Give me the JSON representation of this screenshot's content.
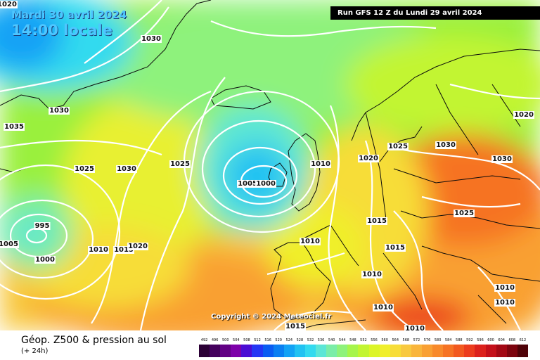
{
  "header": {
    "date": "Mardi 30 avril 2024",
    "time": "14:00 locale",
    "run": "Run GFS 12 Z du Lundi 29 avril 2024"
  },
  "copyright": "Copyright © 2024 Meteociel.fr",
  "footer": {
    "title": "Géop. Z500 & pression au sol",
    "subtitle": "(+ 24h)"
  },
  "legend": {
    "values": [
      "492",
      "496",
      "500",
      "504",
      "508",
      "512",
      "516",
      "520",
      "524",
      "528",
      "532",
      "536",
      "540",
      "544",
      "548",
      "552",
      "556",
      "560",
      "564",
      "568",
      "572",
      "576",
      "580",
      "584",
      "588",
      "592",
      "596",
      "600",
      "604",
      "608",
      "612"
    ],
    "colors": [
      "#2b0035",
      "#44005c",
      "#620084",
      "#7d00a9",
      "#4a0cd4",
      "#2436f4",
      "#0a5cf2",
      "#0a7ff2",
      "#12a2f5",
      "#21c2f2",
      "#33daef",
      "#5ce6d6",
      "#7aeda8",
      "#8ef27b",
      "#a6f54b",
      "#c2f531",
      "#dcf527",
      "#f0ef2c",
      "#f7dd38",
      "#f8c93f",
      "#f9b53b",
      "#f9a033",
      "#f88a2b",
      "#f67324",
      "#f2591f",
      "#ec3c1d",
      "#dc211c",
      "#c4101a",
      "#a30814",
      "#7d040e",
      "#4f0208"
    ]
  },
  "isobars": [
    {
      "text": "1020"
    },
    {
      "text": "1030"
    },
    {
      "text": "1030"
    },
    {
      "text": "1035"
    },
    {
      "text": "1025"
    },
    {
      "text": "1030"
    },
    {
      "text": "1025"
    },
    {
      "text": "1010"
    },
    {
      "text": "1005"
    },
    {
      "text": "1000"
    },
    {
      "text": "995"
    },
    {
      "text": "1005"
    },
    {
      "text": "1000"
    },
    {
      "text": "1010"
    },
    {
      "text": "1015"
    },
    {
      "text": "1020"
    },
    {
      "text": "1010"
    },
    {
      "text": "1015"
    },
    {
      "text": "1015"
    },
    {
      "text": "1010"
    },
    {
      "text": "1010"
    },
    {
      "text": "1015"
    },
    {
      "text": "1010"
    },
    {
      "text": "1020"
    },
    {
      "text": "1025"
    },
    {
      "text": "1030"
    },
    {
      "text": "1030"
    },
    {
      "text": "1025"
    },
    {
      "text": "1020"
    },
    {
      "text": "1010"
    },
    {
      "text": "1010"
    }
  ]
}
